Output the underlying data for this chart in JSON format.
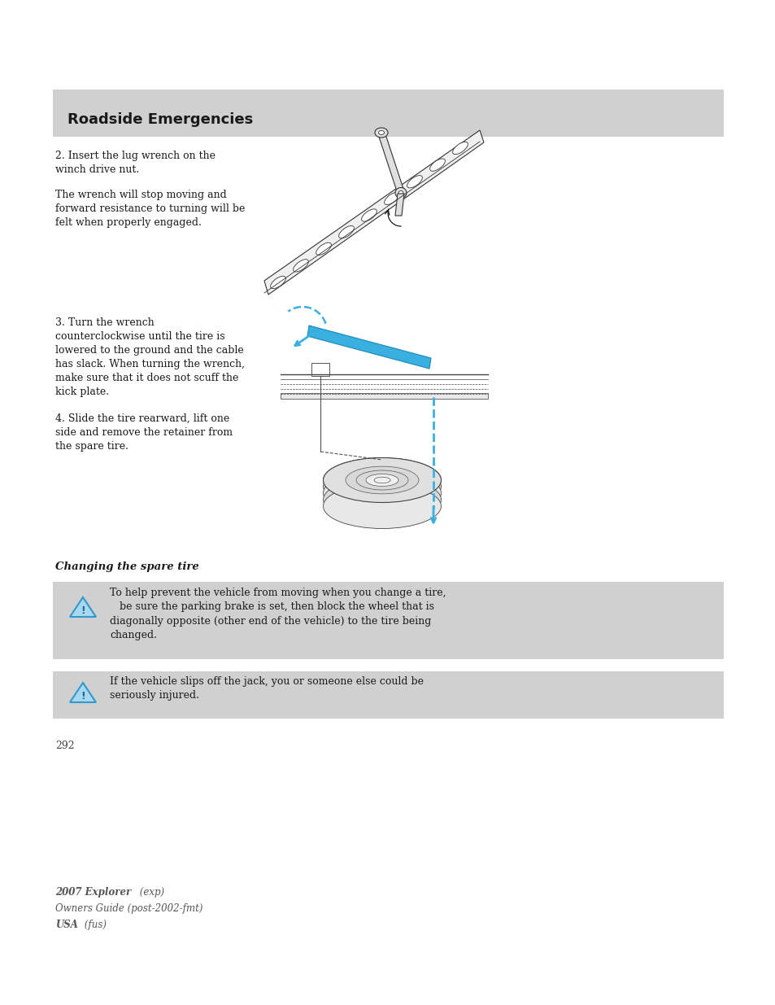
{
  "page_background": "#ffffff",
  "header_bg": "#d0d0d0",
  "header_text": "Roadside Emergencies",
  "header_text_color": "#1a1a1a",
  "header_fontsize": 13,
  "body_text_color": "#1a1a1a",
  "body_fontsize": 9,
  "warning_bg": "#d0d0d0",
  "warning_text_color": "#1a1a1a",
  "warning_fontsize": 9,
  "section_heading": "Changing the spare tire",
  "section_heading_fontsize": 9.5,
  "warning1_line1": "To help prevent the vehicle from moving when you change a tire,",
  "warning1_line2": "   be sure the parking brake is set, then block the wheel that is",
  "warning1_line3": "diagonally opposite (other end of the vehicle) to the tire being",
  "warning1_line4": "changed.",
  "warning2_line1": "If the vehicle slips off the jack, you or someone else could be",
  "warning2_line2": "seriously injured.",
  "page_number": "292",
  "footer_color": "#555555",
  "footer_fontsize": 8.5
}
